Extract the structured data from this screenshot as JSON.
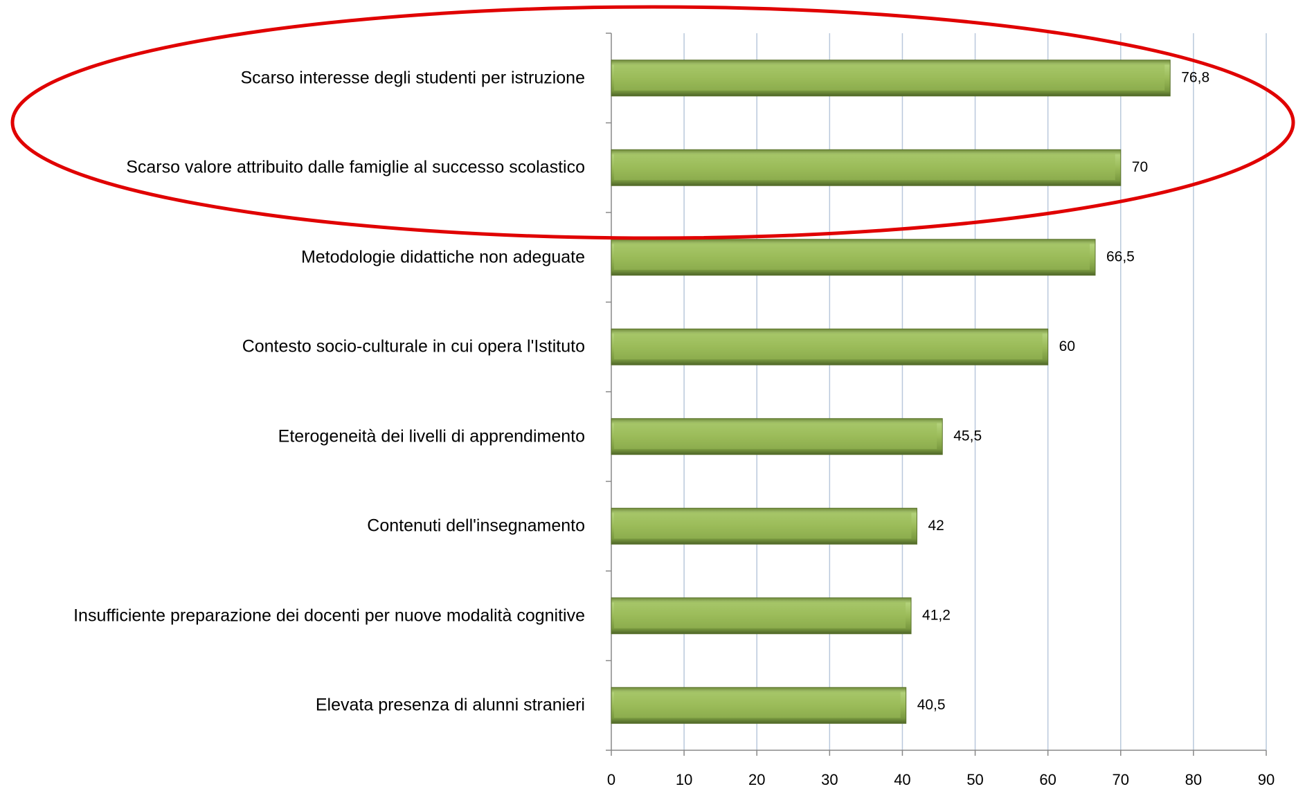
{
  "chart_data": {
    "type": "bar",
    "orientation": "horizontal",
    "categories": [
      "Scarso interesse degli studenti per istruzione",
      "Scarso valore attribuito dalle famiglie al successo scolastico",
      "Metodologie didattiche non adeguate",
      "Contesto socio-culturale in cui opera l'Istituto",
      "Eterogeneità dei livelli di apprendimento",
      "Contenuti dell'insegnamento",
      "Insufficiente preparazione dei docenti per nuove modalità cognitive",
      "Elevata presenza di alunni stranieri"
    ],
    "values": [
      76.8,
      70,
      66.5,
      60,
      45.5,
      42,
      41.2,
      40.5
    ],
    "value_labels": [
      "76,8",
      "70",
      "66,5",
      "60",
      "45,5",
      "42",
      "41,2",
      "40,5"
    ],
    "color": "#9bbb59",
    "xlim": [
      0,
      90
    ],
    "xticks": [
      0,
      10,
      20,
      30,
      40,
      50,
      60,
      70,
      80,
      90
    ],
    "grid": true
  }
}
